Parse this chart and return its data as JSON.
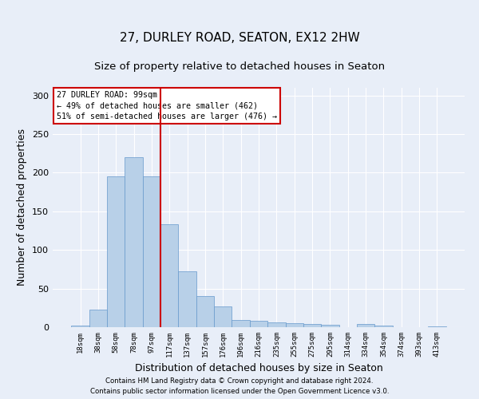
{
  "title": "27, DURLEY ROAD, SEATON, EX12 2HW",
  "subtitle": "Size of property relative to detached houses in Seaton",
  "xlabel": "Distribution of detached houses by size in Seaton",
  "ylabel": "Number of detached properties",
  "footer_line1": "Contains HM Land Registry data © Crown copyright and database right 2024.",
  "footer_line2": "Contains public sector information licensed under the Open Government Licence v3.0.",
  "bar_labels": [
    "18sqm",
    "38sqm",
    "58sqm",
    "78sqm",
    "97sqm",
    "117sqm",
    "137sqm",
    "157sqm",
    "176sqm",
    "196sqm",
    "216sqm",
    "235sqm",
    "255sqm",
    "275sqm",
    "295sqm",
    "314sqm",
    "334sqm",
    "354sqm",
    "374sqm",
    "393sqm",
    "413sqm"
  ],
  "bar_values": [
    2,
    23,
    195,
    220,
    195,
    133,
    72,
    40,
    27,
    9,
    8,
    6,
    5,
    4,
    3,
    0,
    4,
    2,
    0,
    0,
    1
  ],
  "bar_color": "#b8d0e8",
  "bar_edgecolor": "#6699cc",
  "background_color": "#e8eef8",
  "grid_color": "#ffffff",
  "red_line_x": 4.5,
  "red_line_color": "#cc0000",
  "annotation_text": "27 DURLEY ROAD: 99sqm\n← 49% of detached houses are smaller (462)\n51% of semi-detached houses are larger (476) →",
  "annotation_box_color": "#ffffff",
  "annotation_box_edge": "#cc0000",
  "ylim": [
    0,
    310
  ],
  "yticks": [
    0,
    50,
    100,
    150,
    200,
    250,
    300
  ],
  "title_fontsize": 11,
  "subtitle_fontsize": 9.5,
  "xlabel_fontsize": 9,
  "ylabel_fontsize": 9
}
